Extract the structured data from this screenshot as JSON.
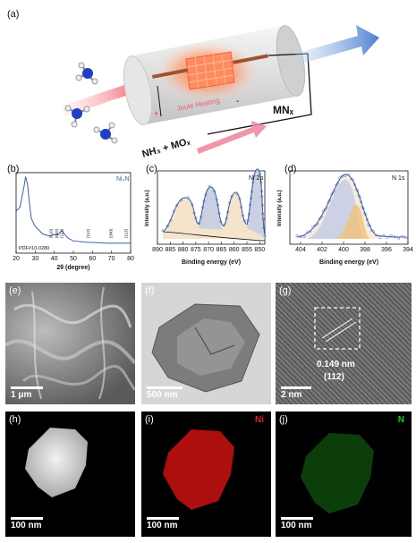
{
  "panel_a": {
    "label": "(a)",
    "nh3_arrow": "NH₃",
    "joule": "Joule Heating",
    "minus": "-",
    "plus": "+",
    "product": "MNₓ",
    "reactants": "NH₃ + MOₓ"
  },
  "panel_b": {
    "label": "(b)",
    "phase": "Ni₃N",
    "pdf": "PDF#10-0280",
    "xlabel": "2θ (degree)",
    "peaks": [
      "(110)",
      "(002)",
      "(111)",
      "(112)",
      "(300)",
      "(113)"
    ]
  },
  "panel_c": {
    "label": "(c)",
    "title": "Ni 2p",
    "xlabel": "Binding energy (eV)",
    "ylabel": "Intensity (a.u.)"
  },
  "panel_d": {
    "label": "(d)",
    "title": "N 1s",
    "xlabel": "Binding energy (eV)",
    "ylabel": "Intensity (a.u.)"
  },
  "panel_e": {
    "label": "(e)",
    "scale": "1 μm"
  },
  "panel_f": {
    "label": "(f)",
    "scale": "500 nm"
  },
  "panel_g": {
    "label": "(g)",
    "scale": "2 nm",
    "d_spacing": "0.149 nm",
    "plane": "(112)"
  },
  "panel_h": {
    "label": "(h)",
    "scale": "100 nm"
  },
  "panel_i": {
    "label": "(i)",
    "scale": "100 nm",
    "element": "Ni"
  },
  "panel_j": {
    "label": "(j)",
    "scale": "100 nm",
    "element": "N"
  },
  "colors": {
    "xrd": "#3b5fa8",
    "ni_label": "#e02020",
    "n_label": "#22cc22",
    "fit_orange": "#e8a040",
    "fit_blue": "#8898c8"
  },
  "chart_data": [
    {
      "type": "line",
      "title": "Ni₃N",
      "xlabel": "2θ (degree)",
      "xlim": [
        20,
        80
      ],
      "x_ticks": [
        20,
        30,
        40,
        50,
        60,
        70,
        80
      ],
      "series": [
        {
          "name": "Ni₃N",
          "x": [
            20,
            22,
            24,
            25,
            26,
            27,
            28,
            30,
            34,
            38,
            39,
            42,
            44,
            45,
            47,
            50,
            58,
            60,
            68,
            70,
            78,
            80
          ],
          "y": [
            0.55,
            0.6,
            0.85,
            1.0,
            0.9,
            0.65,
            0.45,
            0.35,
            0.25,
            0.22,
            0.24,
            0.24,
            0.3,
            0.26,
            0.2,
            0.16,
            0.14,
            0.14,
            0.13,
            0.13,
            0.13,
            0.13
          ]
        }
      ],
      "peak_labels": [
        {
          "x": 39,
          "text": "(110)"
        },
        {
          "x": 42,
          "text": "(002)"
        },
        {
          "x": 44.5,
          "text": "(111)"
        },
        {
          "x": 58.5,
          "text": "(112)"
        },
        {
          "x": 70.5,
          "text": "(300)"
        },
        {
          "x": 78.4,
          "text": "(113)"
        }
      ]
    },
    {
      "type": "line",
      "title": "Ni 2p",
      "xlabel": "Binding energy (eV)",
      "ylabel": "Intensity (a.u.)",
      "xlim": [
        890,
        848
      ],
      "x_ticks": [
        890,
        885,
        880,
        875,
        870,
        865,
        860,
        855,
        850
      ],
      "peaks_eV": [
        880,
        873.5,
        862,
        855.8
      ]
    },
    {
      "type": "line",
      "title": "N 1s",
      "xlabel": "Binding energy (eV)",
      "ylabel": "Intensity (a.u.)",
      "xlim": [
        405,
        394
      ],
      "x_ticks": [
        404,
        402,
        400,
        398,
        396,
        394
      ],
      "peaks_eV": [
        399.2,
        398.2
      ]
    }
  ]
}
